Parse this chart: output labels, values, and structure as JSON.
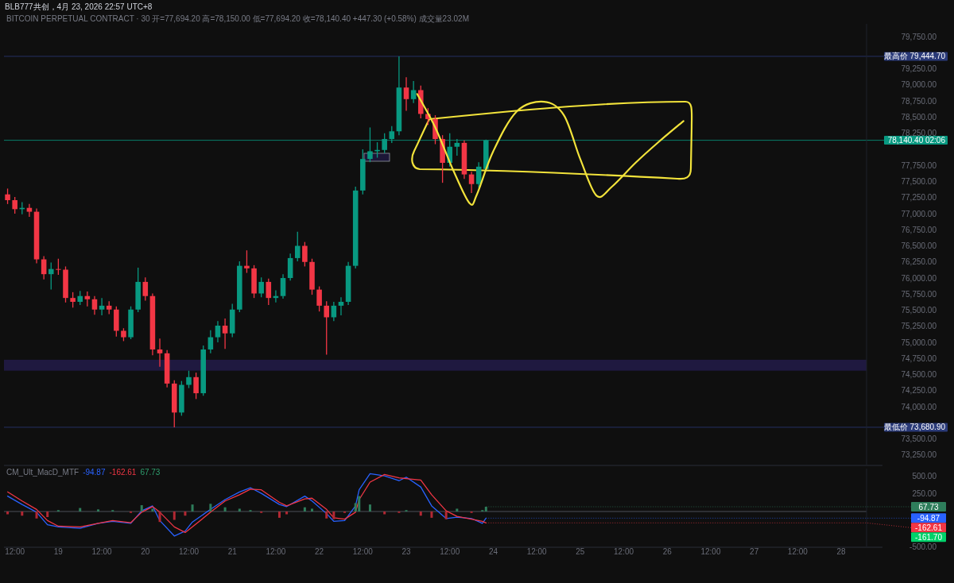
{
  "chart_data": [
    {
      "type": "candlestick",
      "title": "BLB777共创，4月 23, 2026 22:57 UTC+8",
      "subtitle": "BITCOIN PERPETUAL CONTRACT · 30  开=77,694.20 高=78,150.00 低=77,694.20 收=78,140.40 +447.30 (+0.58%) 成交量23.02M",
      "x": [
        "2026-04-18T10:00",
        "2026-04-18T12:00",
        "2026-04-18T14:00",
        "2026-04-18T16:00",
        "2026-04-18T18:00",
        "2026-04-18T20:00",
        "2026-04-18T22:00",
        "2026-04-19T00:00",
        "2026-04-19T02:00",
        "2026-04-19T04:00",
        "2026-04-19T06:00",
        "2026-04-19T08:00",
        "2026-04-19T10:00",
        "2026-04-19T12:00",
        "2026-04-19T14:00",
        "2026-04-19T16:00",
        "2026-04-19T18:00",
        "2026-04-19T20:00",
        "2026-04-19T22:00",
        "2026-04-20T00:00",
        "2026-04-20T02:00",
        "2026-04-20T04:00",
        "2026-04-20T06:00",
        "2026-04-20T08:00",
        "2026-04-20T10:00",
        "2026-04-20T12:00",
        "2026-04-20T14:00",
        "2026-04-20T16:00",
        "2026-04-20T18:00",
        "2026-04-20T20:00",
        "2026-04-20T22:00",
        "2026-04-21T00:00",
        "2026-04-21T02:00",
        "2026-04-21T04:00",
        "2026-04-21T06:00",
        "2026-04-21T08:00",
        "2026-04-21T10:00",
        "2026-04-21T12:00",
        "2026-04-21T14:00",
        "2026-04-21T16:00",
        "2026-04-21T18:00",
        "2026-04-21T20:00",
        "2026-04-21T22:00",
        "2026-04-22T00:00",
        "2026-04-22T02:00",
        "2026-04-22T04:00",
        "2026-04-22T06:00",
        "2026-04-22T08:00",
        "2026-04-22T10:00",
        "2026-04-22T12:00",
        "2026-04-22T14:00",
        "2026-04-22T16:00",
        "2026-04-22T18:00",
        "2026-04-22T20:00",
        "2026-04-22T22:00",
        "2026-04-23T00:00",
        "2026-04-23T02:00",
        "2026-04-23T04:00",
        "2026-04-23T06:00",
        "2026-04-23T08:00",
        "2026-04-23T10:00",
        "2026-04-23T12:00",
        "2026-04-23T14:00",
        "2026-04-23T16:00",
        "2026-04-23T18:00",
        "2026-04-23T20:00",
        "2026-04-23T22:00"
      ],
      "ohlc": [
        [
          77300,
          77390,
          77150,
          77210
        ],
        [
          77210,
          77260,
          77000,
          77070
        ],
        [
          77070,
          77180,
          76990,
          77090
        ],
        [
          77090,
          77150,
          76950,
          77030
        ],
        [
          77030,
          77080,
          76230,
          76290
        ],
        [
          76290,
          76340,
          75980,
          76060
        ],
        [
          76060,
          76240,
          75820,
          76140
        ],
        [
          76140,
          76300,
          76050,
          76130
        ],
        [
          76130,
          76180,
          75620,
          75690
        ],
        [
          75690,
          75780,
          75540,
          75630
        ],
        [
          75630,
          75800,
          75580,
          75720
        ],
        [
          75720,
          75790,
          75560,
          75670
        ],
        [
          75670,
          75720,
          75430,
          75510
        ],
        [
          75510,
          75690,
          75420,
          75570
        ],
        [
          75570,
          75640,
          75440,
          75510
        ],
        [
          75510,
          75560,
          75090,
          75180
        ],
        [
          75180,
          75220,
          75020,
          75080
        ],
        [
          75080,
          75560,
          75050,
          75510
        ],
        [
          75510,
          76160,
          75470,
          75940
        ],
        [
          75940,
          76010,
          75650,
          75720
        ],
        [
          75720,
          75760,
          74800,
          74890
        ],
        [
          74890,
          75060,
          74620,
          74830
        ],
        [
          74830,
          74880,
          74300,
          74360
        ],
        [
          74360,
          74410,
          73680.9,
          73910
        ],
        [
          73910,
          74400,
          73860,
          74340
        ],
        [
          74340,
          74560,
          74290,
          74460
        ],
        [
          74460,
          74530,
          74120,
          74210
        ],
        [
          74210,
          74950,
          74170,
          74890
        ],
        [
          74890,
          75190,
          74830,
          75080
        ],
        [
          75080,
          75330,
          75000,
          75260
        ],
        [
          75260,
          75370,
          74900,
          75140
        ],
        [
          75140,
          75600,
          75080,
          75510
        ],
        [
          75510,
          76260,
          75470,
          76190
        ],
        [
          76190,
          76430,
          76080,
          76150
        ],
        [
          76150,
          76200,
          75690,
          75760
        ],
        [
          75760,
          76010,
          75700,
          75940
        ],
        [
          75940,
          75990,
          75580,
          75690
        ],
        [
          75690,
          75810,
          75620,
          75720
        ],
        [
          75720,
          76060,
          75680,
          76000
        ],
        [
          76000,
          76380,
          75960,
          76310
        ],
        [
          76310,
          76720,
          76260,
          76500
        ],
        [
          76500,
          76560,
          76180,
          76250
        ],
        [
          76250,
          76300,
          75740,
          75820
        ],
        [
          75820,
          75870,
          75480,
          75570
        ],
        [
          75570,
          75640,
          74810,
          75390
        ],
        [
          75390,
          75630,
          75330,
          75570
        ],
        [
          75570,
          75700,
          75420,
          75630
        ],
        [
          75630,
          76250,
          75580,
          76190
        ],
        [
          76190,
          77420,
          76150,
          77360
        ],
        [
          77360,
          78000,
          77300,
          77850
        ],
        [
          77850,
          78340,
          77800,
          77970
        ],
        [
          77970,
          78110,
          77870,
          77990
        ],
        [
          77990,
          78250,
          77940,
          78160
        ],
        [
          78160,
          78360,
          78100,
          78280
        ],
        [
          78280,
          79444.7,
          78220,
          78960
        ],
        [
          78960,
          79120,
          78600,
          78780
        ],
        [
          78780,
          79060,
          78720,
          78920
        ],
        [
          78920,
          78990,
          78480,
          78550
        ],
        [
          78550,
          78640,
          78380,
          78470
        ],
        [
          78470,
          78530,
          78080,
          78160
        ],
        [
          78160,
          78220,
          77480,
          77790
        ],
        [
          77790,
          78250,
          77730,
          78040
        ],
        [
          78040,
          78160,
          77900,
          78100
        ],
        [
          78100,
          78140,
          77540,
          77610
        ],
        [
          77610,
          77650,
          77320,
          77460
        ],
        [
          77460,
          77800,
          77400,
          77730
        ],
        [
          77694.2,
          78150,
          77694.2,
          78140.4
        ]
      ],
      "colors": [
        "#f23645",
        "#f23645",
        "#089981",
        "#f23645",
        "#f23645",
        "#f23645",
        "#089981",
        "#f23645",
        "#f23645",
        "#f23645",
        "#089981",
        "#f23645",
        "#f23645",
        "#089981",
        "#f23645",
        "#f23645",
        "#f23645",
        "#089981",
        "#089981",
        "#f23645",
        "#f23645",
        "#f23645",
        "#f23645",
        "#f23645",
        "#089981",
        "#089981",
        "#f23645",
        "#089981",
        "#089981",
        "#089981",
        "#f23645",
        "#089981",
        "#089981",
        "#f23645",
        "#f23645",
        "#089981",
        "#f23645",
        "#089981",
        "#089981",
        "#089981",
        "#089981",
        "#f23645",
        "#f23645",
        "#f23645",
        "#f23645",
        "#089981",
        "#089981",
        "#089981",
        "#089981",
        "#089981",
        "#089981",
        "#089981",
        "#089981",
        "#089981",
        "#089981",
        "#f23645",
        "#089981",
        "#f23645",
        "#f23645",
        "#f23645",
        "#f23645",
        "#089981",
        "#089981",
        "#f23645",
        "#f23645",
        "#089981",
        "#089981"
      ],
      "xlim": [
        "2026-04-18T09:00",
        "2026-04-28T07:00"
      ],
      "ylim": [
        73100,
        79950
      ],
      "yticks": [
        {
          "value": 79750,
          "label": "79,750.00"
        },
        {
          "value": 79250,
          "label": "79,250.00"
        },
        {
          "value": 79000,
          "label": "79,000.00"
        },
        {
          "value": 78750,
          "label": "78,750.00"
        },
        {
          "value": 78500,
          "label": "78,500.00"
        },
        {
          "value": 78250,
          "label": "78,250.00"
        },
        {
          "value": 77750,
          "label": "77,750.00"
        },
        {
          "value": 77500,
          "label": "77,500.00"
        },
        {
          "value": 77250,
          "label": "77,250.00"
        },
        {
          "value": 77000,
          "label": "77,000.00"
        },
        {
          "value": 76750,
          "label": "76,750.00"
        },
        {
          "value": 76500,
          "label": "76,500.00"
        },
        {
          "value": 76250,
          "label": "76,250.00"
        },
        {
          "value": 76000,
          "label": "76,000.00"
        },
        {
          "value": 75750,
          "label": "75,750.00"
        },
        {
          "value": 75500,
          "label": "75,500.00"
        },
        {
          "value": 75250,
          "label": "75,250.00"
        },
        {
          "value": 75000,
          "label": "75,000.00"
        },
        {
          "value": 74750,
          "label": "74,750.00"
        },
        {
          "value": 74500,
          "label": "74,500.00"
        },
        {
          "value": 74250,
          "label": "74,250.00"
        },
        {
          "value": 74000,
          "label": "74,000.00"
        },
        {
          "value": 73500,
          "label": "73,500.00"
        },
        {
          "value": 73250,
          "label": "73,250.00"
        }
      ],
      "tick_labels": "y",
      "series": [
        {
          "type": "line",
          "color": "#f2e33b",
          "x": [
            "2026-04-23T03:00",
            "2026-04-23T08:00",
            "2026-04-23T13:00",
            "2026-04-23T17:30",
            "2026-04-23T19:30",
            "2026-04-24T00:00",
            "2026-04-24T06:30",
            "2026-04-24T14:00",
            "2026-04-24T19:30",
            "2026-04-25T00:00",
            "2026-04-25T04:30",
            "2026-04-25T08:45",
            "2026-04-25T15:15",
            "2026-04-25T21:45",
            "2026-04-26T04:30"
          ],
          "values": [
            78860,
            78340,
            77670,
            77160,
            77300,
            77970,
            78590,
            78740,
            78530,
            77850,
            77280,
            77420,
            77790,
            78120,
            78440
          ]
        }
      ],
      "ref_lines": [
        {
          "axis": "y",
          "value": 79444.7,
          "label": "最高价 79,444.70",
          "color": "#2a3a78"
        },
        {
          "axis": "y",
          "value": 73680.9,
          "label": "最低价 73,680.90",
          "color": "#2a3a78"
        },
        {
          "axis": "y",
          "value": 78140.4,
          "label": "78,140.40 02:06",
          "color": "#089981"
        }
      ],
      "bands": [
        {
          "axis": "y",
          "from": 74560,
          "to": 74730,
          "color": "#2a2060"
        }
      ]
    },
    {
      "type": "line",
      "title": "CM_Ult_MacD_MTF -94.87 -162.61 67.73",
      "x": [
        "2026-04-18T10:00",
        "2026-04-18T14:00",
        "2026-04-18T18:00",
        "2026-04-18T21:00",
        "2026-04-19T00:00",
        "2026-04-19T06:00",
        "2026-04-19T11:00",
        "2026-04-19T15:00",
        "2026-04-19T20:00",
        "2026-04-19T23:00",
        "2026-04-20T02:00",
        "2026-04-20T04:00",
        "2026-04-20T08:00",
        "2026-04-20T11:00",
        "2026-04-20T13:00",
        "2026-04-20T18:00",
        "2026-04-20T22:00",
        "2026-04-21T02:00",
        "2026-04-21T05:00",
        "2026-04-21T08:00",
        "2026-04-21T13:00",
        "2026-04-21T15:00",
        "2026-04-21T20:00",
        "2026-04-21T22:00",
        "2026-04-22T02:00",
        "2026-04-22T04:00",
        "2026-04-22T07:00",
        "2026-04-22T10:00",
        "2026-04-22T11:00",
        "2026-04-22T14:00",
        "2026-04-22T18:00",
        "2026-04-22T22:00",
        "2026-04-23T00:00",
        "2026-04-23T04:00",
        "2026-04-23T07:00",
        "2026-04-23T11:00",
        "2026-04-23T14:00",
        "2026-04-23T18:00",
        "2026-04-23T21:00",
        "2026-04-23T22:00"
      ],
      "series": [
        {
          "type": "line",
          "color": "#2962ff",
          "values": [
            220,
            100,
            -10,
            -190,
            -220,
            -240,
            -170,
            -140,
            -170,
            10,
            80,
            -130,
            -350,
            -280,
            -150,
            30,
            170,
            280,
            340,
            260,
            100,
            70,
            220,
            150,
            -30,
            -140,
            -130,
            80,
            310,
            540,
            510,
            440,
            490,
            350,
            80,
            -100,
            -80,
            -100,
            -170,
            -94.87
          ],
          "value_labels": [
            null,
            null,
            null,
            null,
            null,
            null,
            null,
            null,
            null,
            null,
            null,
            null,
            null,
            null,
            null,
            null,
            null,
            null,
            null,
            null,
            null,
            null,
            null,
            null,
            null,
            null,
            null,
            null,
            null,
            null,
            null,
            null,
            null,
            null,
            null,
            null,
            null,
            null,
            null,
            "-94.87"
          ]
        },
        {
          "type": "line",
          "color": "#f23645",
          "values": [
            280,
            150,
            30,
            -130,
            -210,
            -220,
            -170,
            -130,
            -160,
            -10,
            70,
            -10,
            -220,
            -300,
            -220,
            -10,
            150,
            240,
            320,
            310,
            130,
            80,
            180,
            190,
            30,
            -90,
            -110,
            -10,
            170,
            420,
            530,
            480,
            470,
            450,
            240,
            10,
            -70,
            -110,
            -140,
            -162.61
          ],
          "value_labels": [
            null,
            null,
            null,
            null,
            null,
            null,
            null,
            null,
            null,
            null,
            null,
            null,
            null,
            null,
            null,
            null,
            null,
            null,
            null,
            null,
            null,
            null,
            null,
            null,
            null,
            null,
            null,
            null,
            null,
            null,
            null,
            null,
            null,
            null,
            null,
            null,
            null,
            null,
            null,
            "-162.61"
          ]
        },
        {
          "type": "bar",
          "colors": [
            "#b22833",
            "#b22833",
            "#b22833",
            "#b22833",
            "#2e7d5b",
            "#2e7d5b",
            "#2e7d5b",
            "#2e7d5b",
            "#b22833",
            "#2e7d5b",
            "#2e7d5b",
            "#b22833",
            "#b22833",
            "#b22833",
            "#2e7d5b",
            "#2e7d5b",
            "#2e7d5b",
            "#2e7d5b",
            "#2e7d5b",
            "#b22833",
            "#b22833",
            "#b22833",
            "#2e7d5b",
            "#2e7d5b",
            "#b22833",
            "#b22833",
            "#b22833",
            "#2e7d5b",
            "#2e7d5b",
            "#2e7d5b",
            "#b22833",
            "#b22833",
            "#2e7d5b",
            "#b22833",
            "#b22833",
            "#b22833",
            "#2e7d5b",
            "#b22833",
            "#2e7d5b",
            "#2e7d5b"
          ],
          "values": [
            -40,
            -60,
            -100,
            -80,
            20,
            50,
            30,
            20,
            -20,
            90,
            40,
            -150,
            -120,
            -60,
            100,
            110,
            60,
            40,
            20,
            -20,
            -90,
            -40,
            60,
            40,
            -100,
            -110,
            -20,
            120,
            220,
            100,
            -40,
            -20,
            20,
            -60,
            -90,
            -110,
            40,
            -20,
            20,
            67.73
          ],
          "value_labels": [
            null,
            null,
            null,
            null,
            null,
            null,
            null,
            null,
            null,
            null,
            null,
            null,
            null,
            null,
            null,
            null,
            null,
            null,
            null,
            null,
            null,
            null,
            null,
            null,
            null,
            null,
            null,
            null,
            null,
            null,
            null,
            null,
            null,
            null,
            null,
            null,
            null,
            null,
            null,
            "67.73"
          ]
        }
      ],
      "xlim": [
        "2026-04-18T09:00",
        "2026-04-28T07:00"
      ],
      "xticks": [
        {
          "value": "2026-04-18T12:00",
          "label": "12:00"
        },
        {
          "value": "2026-04-19",
          "label": "19"
        },
        {
          "value": "2026-04-19T12:00",
          "label": "12:00"
        },
        {
          "value": "2026-04-20",
          "label": "20"
        },
        {
          "value": "2026-04-20T12:00",
          "label": "12:00"
        },
        {
          "value": "2026-04-21",
          "label": "21"
        },
        {
          "value": "2026-04-21T12:00",
          "label": "12:00"
        },
        {
          "value": "2026-04-22",
          "label": "22"
        },
        {
          "value": "2026-04-22T12:00",
          "label": "12:00"
        },
        {
          "value": "2026-04-23",
          "label": "23"
        },
        {
          "value": "2026-04-23T12:00",
          "label": "12:00"
        },
        {
          "value": "2026-04-24",
          "label": "24"
        },
        {
          "value": "2026-04-24T12:00",
          "label": "12:00"
        },
        {
          "value": "2026-04-25",
          "label": "25"
        },
        {
          "value": "2026-04-25T12:00",
          "label": "12:00"
        },
        {
          "value": "2026-04-26",
          "label": "26"
        },
        {
          "value": "2026-04-26T12:00",
          "label": "12:00"
        },
        {
          "value": "2026-04-27",
          "label": "27"
        },
        {
          "value": "2026-04-27T12:00",
          "label": "12:00"
        },
        {
          "value": "2026-04-28",
          "label": "28"
        }
      ],
      "ylim": [
        -500,
        613
      ],
      "yticks": [
        {
          "value": 500,
          "label": "500.00"
        },
        {
          "value": 250,
          "label": "250.00"
        },
        {
          "value": -500,
          "label": "-500.00"
        }
      ],
      "ref_lines": [
        {
          "axis": "y",
          "value": 0,
          "color": "#5d606b"
        }
      ],
      "annotations": [
        "-161.70"
      ]
    }
  ]
}
